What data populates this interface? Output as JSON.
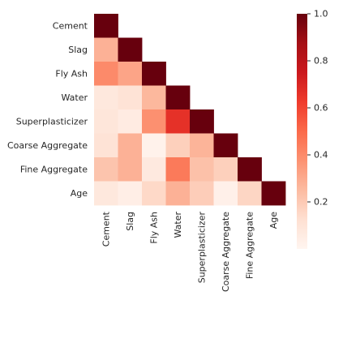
{
  "chart_data": {
    "type": "heatmap",
    "title": "",
    "xlabel": "",
    "ylabel": "",
    "mask": "upper-triangle",
    "colormap": "Reds",
    "color_range": [
      0,
      1
    ],
    "row_labels": [
      "Cement",
      "Slag",
      "Fly Ash",
      "Water",
      "Superplasticizer",
      "Coarse Aggregate",
      "Fine Aggregate",
      "Age"
    ],
    "col_labels": [
      "Cement",
      "Slag",
      "Fly Ash",
      "Water",
      "Superplasticizer",
      "Coarse Aggregate",
      "Fine Aggregate",
      "Age"
    ],
    "values": [
      [
        1.0
      ],
      [
        0.28,
        1.0
      ],
      [
        0.4,
        0.32,
        1.0
      ],
      [
        0.08,
        0.11,
        0.26,
        1.0
      ],
      [
        0.09,
        0.06,
        0.38,
        0.66,
        1.0
      ],
      [
        0.11,
        0.28,
        0.02,
        0.18,
        0.27,
        1.0
      ],
      [
        0.22,
        0.28,
        0.07,
        0.45,
        0.23,
        0.18,
        1.0
      ],
      [
        0.08,
        0.04,
        0.15,
        0.28,
        0.19,
        0.03,
        0.16,
        1.0
      ]
    ],
    "colorbar": {
      "ticks": [
        0.2,
        0.4,
        0.6,
        0.8,
        1.0
      ],
      "tick_labels": [
        "0.2",
        "0.4",
        "0.6",
        "0.8",
        "1.0"
      ]
    }
  }
}
